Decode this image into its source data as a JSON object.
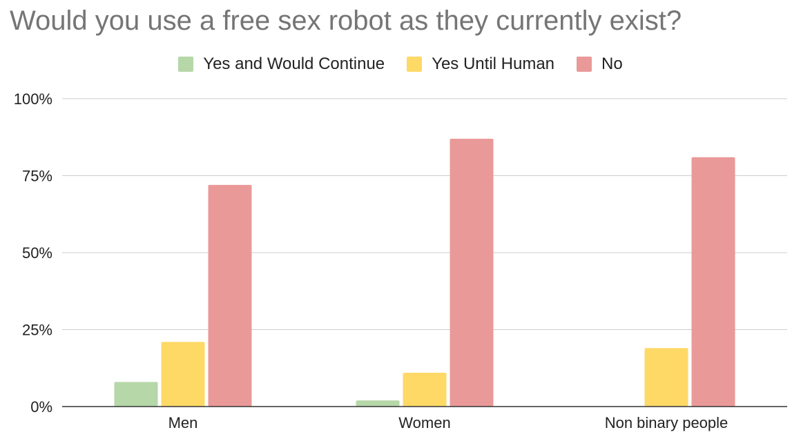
{
  "chart_data": {
    "type": "bar",
    "title": "Would you use a free sex robot as they currently exist?",
    "xlabel": "",
    "ylabel": "",
    "categories": [
      "Men",
      "Women",
      "Non binary people"
    ],
    "series": [
      {
        "name": "Yes and Would Continue",
        "color": "#b6d7a8",
        "values": [
          0.08,
          0.02,
          0
        ]
      },
      {
        "name": "Yes Until Human",
        "color": "#ffd966",
        "values": [
          0.21,
          0.11,
          0.19
        ]
      },
      {
        "name": "No",
        "color": "#ea9999",
        "values": [
          0.72,
          0.87,
          0.81
        ]
      }
    ],
    "ylim": [
      0,
      1
    ],
    "yticks": [
      {
        "value": 0,
        "label": "0%"
      },
      {
        "value": 0.25,
        "label": "25%"
      },
      {
        "value": 0.5,
        "label": "50%"
      },
      {
        "value": 0.75,
        "label": "75%"
      },
      {
        "value": 1,
        "label": "100%"
      }
    ],
    "grid": true,
    "legend_position": "top"
  }
}
